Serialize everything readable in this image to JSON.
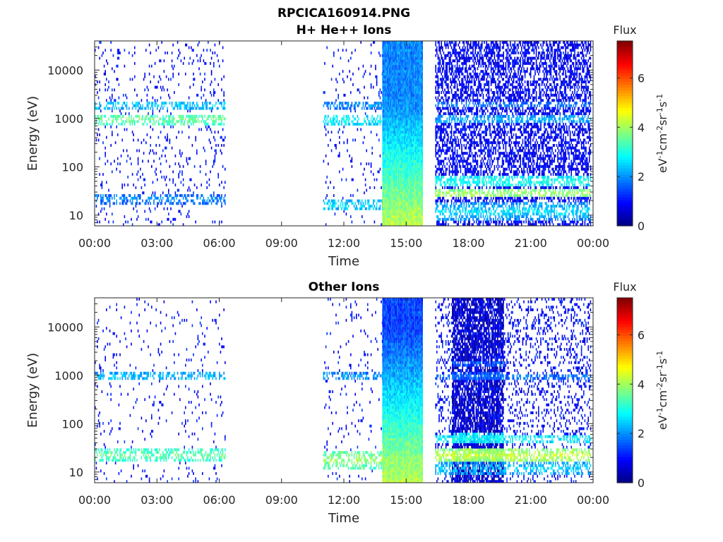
{
  "figure": {
    "title_line1": "RPCICA160914.PNG",
    "title_line2": "H+ He++ Ions"
  },
  "chart_data": [
    {
      "type": "heatmap",
      "title": "H+ He++ Ions",
      "xlabel": "Time",
      "ylabel": "Energy (eV)",
      "x_ticks": [
        "00:00",
        "03:00",
        "06:00",
        "09:00",
        "12:00",
        "15:00",
        "18:00",
        "21:00",
        "00:00"
      ],
      "x_range_hours": [
        0,
        24
      ],
      "y_scale": "log",
      "y_ticks": [
        "10",
        "100",
        "1000",
        "10000"
      ],
      "y_range": [
        6,
        40000
      ],
      "colorbar": {
        "title": "Flux",
        "label": "eV-1cm-2sr-1s-1",
        "ticks": [
          "0",
          "2",
          "4",
          "6"
        ],
        "range": [
          0,
          7.5
        ],
        "colormap": "jet"
      },
      "regions": [
        {
          "t0": 0.0,
          "t1": 6.3,
          "base": 1.0,
          "density": 0.07,
          "bands": [
            {
              "e": 950,
              "w": 0.12,
              "v": 3.6
            },
            {
              "e": 1900,
              "w": 0.08,
              "v": 2.5
            },
            {
              "e": 22,
              "w": 0.1,
              "v": 2.0
            }
          ]
        },
        {
          "t0": 11.0,
          "t1": 13.85,
          "base": 1.0,
          "density": 0.05,
          "bands": [
            {
              "e": 950,
              "w": 0.1,
              "v": 2.9
            },
            {
              "e": 1900,
              "w": 0.07,
              "v": 2.0
            },
            {
              "e": 16,
              "w": 0.12,
              "v": 2.6
            }
          ]
        },
        {
          "t0": 13.85,
          "t1": 15.8,
          "base": 1.9,
          "density": 1.0,
          "gradient": true,
          "bands": [
            {
              "e": 12,
              "w": 0.35,
              "v": 4.0
            }
          ]
        },
        {
          "t0": 16.4,
          "t1": 23.9,
          "base": 0.9,
          "density": 0.55,
          "bands": [
            {
              "e": 950,
              "w": 0.07,
              "v": 2.2
            },
            {
              "e": 1900,
              "w": 0.06,
              "v": 1.8
            },
            {
              "e": 50,
              "w": 0.1,
              "v": 3.0
            },
            {
              "e": 28,
              "w": 0.07,
              "v": 4.0
            },
            {
              "e": 12,
              "w": 0.2,
              "v": 2.6
            }
          ]
        }
      ]
    },
    {
      "type": "heatmap",
      "title": "Other Ions",
      "xlabel": "Time",
      "ylabel": "Energy (eV)",
      "x_ticks": [
        "00:00",
        "03:00",
        "06:00",
        "09:00",
        "12:00",
        "15:00",
        "18:00",
        "21:00",
        "00:00"
      ],
      "x_range_hours": [
        0,
        24
      ],
      "y_scale": "log",
      "y_ticks": [
        "10",
        "100",
        "1000",
        "10000"
      ],
      "y_range": [
        6,
        40000
      ],
      "colorbar": {
        "title": "Flux",
        "label": "eV-1cm-2sr-1s-1",
        "ticks": [
          "0",
          "2",
          "4",
          "6"
        ],
        "range": [
          0,
          7.5
        ],
        "colormap": "jet"
      },
      "regions": [
        {
          "t0": 0.0,
          "t1": 6.3,
          "base": 1.0,
          "density": 0.04,
          "bands": [
            {
              "e": 950,
              "w": 0.08,
              "v": 2.4
            },
            {
              "e": 22,
              "w": 0.15,
              "v": 3.6
            }
          ]
        },
        {
          "t0": 11.0,
          "t1": 13.85,
          "base": 1.0,
          "density": 0.04,
          "bands": [
            {
              "e": 950,
              "w": 0.07,
              "v": 2.1
            },
            {
              "e": 18,
              "w": 0.2,
              "v": 4.0
            }
          ]
        },
        {
          "t0": 13.85,
          "t1": 15.8,
          "base": 1.4,
          "density": 1.0,
          "gradient": true,
          "bands": [
            {
              "e": 20,
              "w": 0.3,
              "v": 3.9
            }
          ]
        },
        {
          "t0": 17.2,
          "t1": 19.7,
          "base": 0.5,
          "density": 0.75,
          "bands": [
            {
              "e": 950,
              "w": 0.07,
              "v": 1.8
            },
            {
              "e": 1800,
              "w": 0.06,
              "v": 1.6
            },
            {
              "e": 50,
              "w": 0.1,
              "v": 3.0
            },
            {
              "e": 22,
              "w": 0.15,
              "v": 4.2
            }
          ]
        },
        {
          "t0": 16.4,
          "t1": 23.9,
          "base": 1.0,
          "density": 0.2,
          "bands": [
            {
              "e": 950,
              "w": 0.06,
              "v": 1.8
            },
            {
              "e": 50,
              "w": 0.08,
              "v": 2.8
            },
            {
              "e": 22,
              "w": 0.13,
              "v": 4.3
            },
            {
              "e": 12,
              "w": 0.15,
              "v": 2.5
            }
          ]
        }
      ]
    }
  ]
}
